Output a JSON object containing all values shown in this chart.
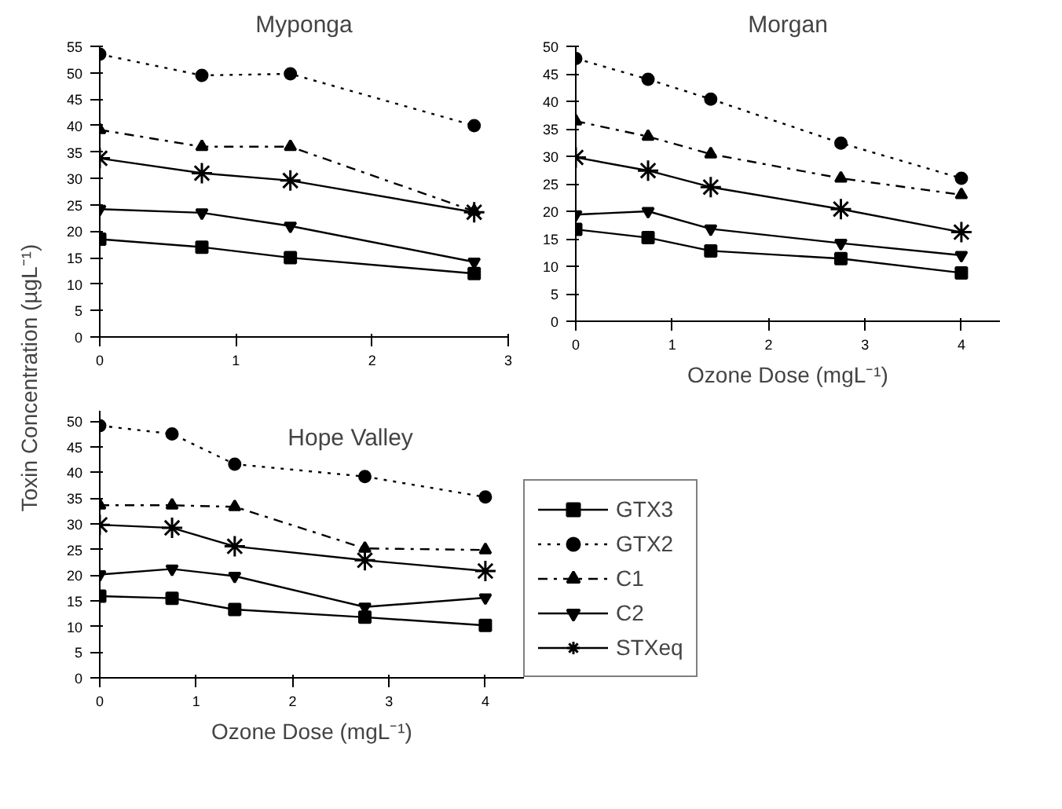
{
  "chart_data": [
    {
      "type": "line",
      "title": "Myponga",
      "ylabel": "Toxin Concentration (µgL⁻¹)",
      "x": [
        0,
        0.75,
        1.4,
        2.75
      ],
      "xlim": [
        0,
        3
      ],
      "xticks": [
        0,
        1,
        2,
        3
      ],
      "ylim": [
        0,
        55
      ],
      "yticks": [
        0,
        5,
        10,
        15,
        20,
        25,
        30,
        35,
        40,
        45,
        50,
        55
      ],
      "grid": false,
      "legend": false,
      "series": [
        {
          "color": "#000000",
          "marker": "square",
          "line_style": "solid",
          "values": [
            18.5,
            17,
            15,
            12
          ]
        },
        {
          "color": "#000000",
          "marker": "circle",
          "line_style": "dotted",
          "values": [
            53.5,
            49.5,
            49.8,
            40
          ]
        },
        {
          "color": "#000000",
          "marker": "triangle",
          "line_style": "dashed",
          "values": [
            39.2,
            36,
            36,
            23.8
          ]
        },
        {
          "color": "#000000",
          "marker": "triangle_down",
          "line_style": "solid",
          "values": [
            24.2,
            23.5,
            21,
            14.2
          ]
        },
        {
          "color": "#000000",
          "marker": "cross",
          "line_style": "solid",
          "values": [
            33.8,
            31,
            29.6,
            23.6
          ]
        }
      ]
    },
    {
      "type": "line",
      "title": "Morgan",
      "xlabel": "Ozone Dose (mgL⁻¹)",
      "x": [
        0,
        0.75,
        1.4,
        2.75,
        4
      ],
      "xlim": [
        0,
        4.4
      ],
      "xticks": [
        0,
        1,
        2,
        3,
        4
      ],
      "ylim": [
        0,
        50
      ],
      "yticks": [
        0,
        5,
        10,
        15,
        20,
        25,
        30,
        35,
        40,
        45,
        50
      ],
      "grid": false,
      "legend": false,
      "series": [
        {
          "color": "#000000",
          "marker": "square",
          "line_style": "solid",
          "values": [
            16.7,
            15.2,
            12.8,
            11.4,
            8.8
          ]
        },
        {
          "color": "#000000",
          "marker": "circle",
          "line_style": "dotted",
          "values": [
            47.8,
            44,
            40.4,
            32.4,
            26
          ]
        },
        {
          "color": "#000000",
          "marker": "triangle",
          "line_style": "dashed",
          "values": [
            36.4,
            33.6,
            30.4,
            26,
            23
          ]
        },
        {
          "color": "#000000",
          "marker": "triangle_down",
          "line_style": "solid",
          "values": [
            19.4,
            20,
            16.8,
            14.2,
            12
          ]
        },
        {
          "color": "#000000",
          "marker": "cross",
          "line_style": "solid",
          "values": [
            29.8,
            27.4,
            24.4,
            20.4,
            16.2
          ]
        }
      ]
    },
    {
      "type": "line",
      "title": "Hope Valley",
      "xlabel": "Ozone Dose (mgL⁻¹)",
      "x": [
        0,
        0.75,
        1.4,
        2.75,
        4
      ],
      "xlim": [
        0,
        4.4
      ],
      "xticks": [
        0,
        1,
        2,
        3,
        4
      ],
      "ylim": [
        0,
        52
      ],
      "yticks": [
        0,
        5,
        10,
        15,
        20,
        25,
        30,
        35,
        40,
        45,
        50
      ],
      "grid": false,
      "legend": "right",
      "series": [
        {
          "name": "GTX3",
          "color": "#000000",
          "marker": "square",
          "line_style": "solid",
          "values": [
            15.9,
            15.5,
            13.3,
            11.8,
            10.2
          ]
        },
        {
          "name": "GTX2",
          "color": "#000000",
          "marker": "circle",
          "line_style": "dotted",
          "values": [
            49.1,
            47.5,
            41.6,
            39.2,
            35.2
          ]
        },
        {
          "name": "C1",
          "color": "#000000",
          "marker": "triangle",
          "line_style": "dashed",
          "values": [
            33.6,
            33.6,
            33.3,
            25.2,
            24.9
          ]
        },
        {
          "name": "C2",
          "color": "#000000",
          "marker": "triangle_down",
          "line_style": "solid",
          "values": [
            20.1,
            21.2,
            19.8,
            13.8,
            15.6
          ]
        },
        {
          "name": "STXeq",
          "color": "#000000",
          "marker": "cross",
          "line_style": "solid",
          "values": [
            29.8,
            29.2,
            25.6,
            22.9,
            20.8
          ]
        }
      ]
    }
  ]
}
